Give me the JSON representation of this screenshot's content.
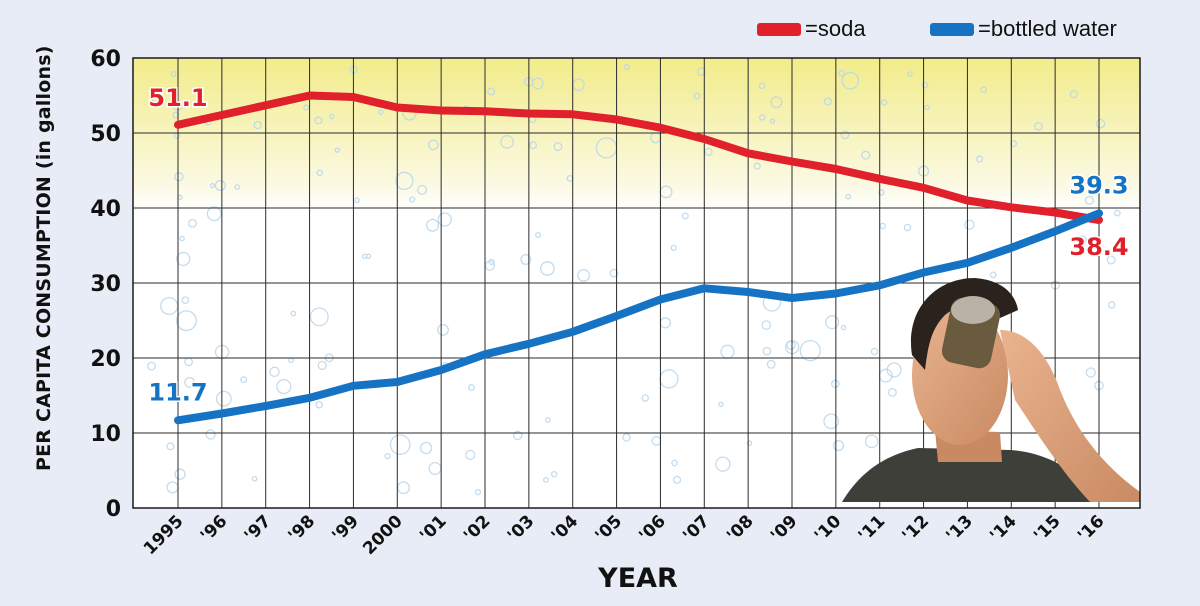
{
  "chart_data": {
    "type": "line",
    "xlabel": "YEAR",
    "ylabel": "PER CAPITA CONSUMPTION (in gallons)",
    "ylim": [
      0,
      60
    ],
    "yticks": [
      "0",
      "10",
      "20",
      "30",
      "40",
      "50",
      "60"
    ],
    "categories": [
      "1995",
      "'96",
      "'97",
      "'98",
      "'99",
      "2000",
      "'01",
      "'02",
      "'03",
      "'04",
      "'05",
      "'06",
      "'07",
      "'08",
      "'09",
      "'10",
      "'11",
      "'12",
      "'13",
      "'14",
      "'15",
      "'16"
    ],
    "grid": true,
    "legend_placement": "top-right",
    "series": [
      {
        "name": "soda",
        "legend_label": "=soda",
        "color": "#e0202a",
        "values": [
          51.1,
          52.4,
          53.7,
          55.0,
          54.8,
          53.4,
          53.0,
          52.9,
          52.6,
          52.5,
          51.8,
          50.7,
          49.2,
          47.3,
          46.2,
          45.2,
          43.9,
          42.7,
          41.0,
          40.1,
          39.4,
          38.4
        ],
        "first_label": "51.1",
        "last_label": "38.4"
      },
      {
        "name": "bottled water",
        "legend_label": "=bottled water",
        "color": "#1673c4",
        "values": [
          11.7,
          12.6,
          13.6,
          14.7,
          16.3,
          16.8,
          18.4,
          20.5,
          21.9,
          23.5,
          25.6,
          27.8,
          29.3,
          28.8,
          28.0,
          28.6,
          29.7,
          31.4,
          32.7,
          34.7,
          36.9,
          39.3
        ],
        "first_label": "11.7",
        "last_label": "39.3"
      }
    ]
  }
}
